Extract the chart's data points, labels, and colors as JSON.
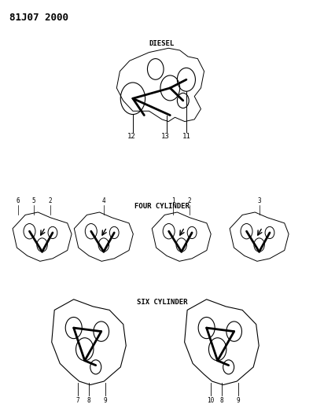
{
  "title_code": "81J07 2000",
  "background_color": "#ffffff",
  "line_color": "#000000",
  "diesel_label": "DIESEL",
  "four_cyl_label": "FOUR CYLINDER",
  "six_cyl_label": "SIX CYLINDER",
  "diesel_numbers": [
    "12",
    "13",
    "11"
  ],
  "four_cyl_groups": [
    {
      "numbers": [
        "6",
        "5",
        "2"
      ]
    },
    {
      "numbers": [
        "4"
      ]
    },
    {
      "numbers": [
        "1",
        "2"
      ]
    },
    {
      "numbers": [
        "3"
      ]
    }
  ],
  "six_cyl_groups": [
    {
      "numbers": [
        "7",
        "8",
        "9"
      ]
    },
    {
      "numbers": [
        "10",
        "8",
        "9"
      ]
    }
  ]
}
